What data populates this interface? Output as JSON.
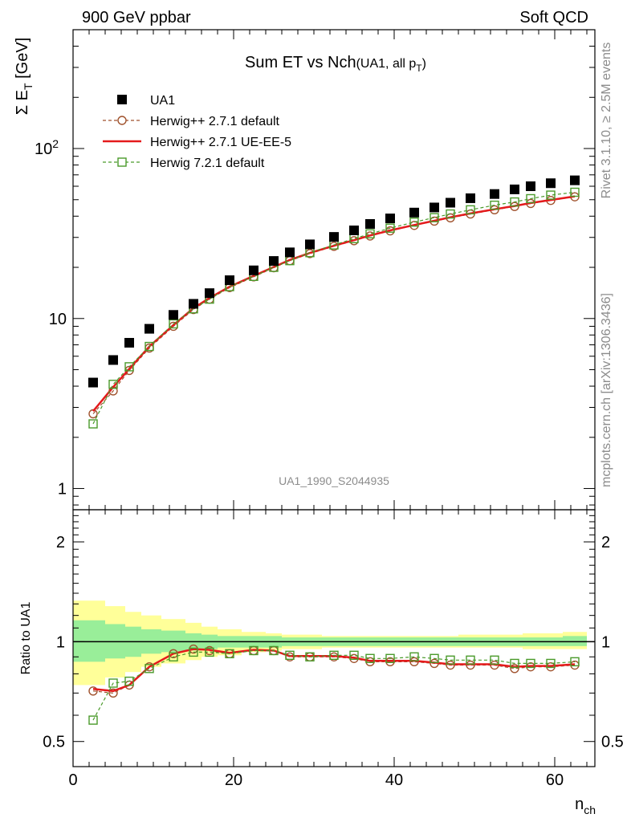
{
  "header": {
    "left": "900 GeV ppbar",
    "right": "Soft QCD"
  },
  "side_texts": {
    "rivet": "Rivet 3.1.10, ≥ 2.5M events",
    "mcplots": "mcplots.cern.ch [arXiv:1306.3436]"
  },
  "watermark": "UA1_1990_S2044935",
  "chart_data": [
    {
      "type": "scatter",
      "panel": "main",
      "title": {
        "main": "Sum ET vs Nch",
        "sub": "(UA1, all p",
        "sub_index": "T",
        "sub_close": ")"
      },
      "ylabel": {
        "sym": "Σ E",
        "sub": "T",
        "unit": " [GeV]"
      },
      "xlabel": "",
      "yscale": "log",
      "ylim": [
        0.75,
        500
      ],
      "xlim": [
        0,
        65
      ],
      "yticks": [
        {
          "v": 1,
          "label": "1"
        },
        {
          "v": 10,
          "label": "10"
        },
        {
          "v": 100,
          "label": "10",
          "sup": "2"
        }
      ],
      "legend": {
        "position": "top-left"
      },
      "x": [
        2.5,
        5,
        7,
        9.5,
        12.5,
        15,
        17,
        19.5,
        22.5,
        25,
        27,
        29.5,
        32.5,
        35,
        37,
        39.5,
        42.5,
        45,
        47,
        49.5,
        52.5,
        55,
        57,
        59.5,
        62.5
      ],
      "series": [
        {
          "name": "UA1",
          "style": "data",
          "color": "#000000",
          "values": [
            4.2,
            5.7,
            7.2,
            8.7,
            10.5,
            12.2,
            14.1,
            16.8,
            19.2,
            21.8,
            24.5,
            27.3,
            30.2,
            33.0,
            36.0,
            38.8,
            42.0,
            45.0,
            48.0,
            51.0,
            54.0,
            57.5,
            60.0,
            62.5,
            65.0
          ]
        },
        {
          "name": "Herwig++ 2.7.1 default",
          "style": "circle-dashed",
          "color": "#a0522d",
          "values": [
            2.75,
            3.75,
            4.95,
            6.7,
            9.0,
            11.3,
            13.0,
            15.2,
            17.6,
            19.9,
            21.9,
            24.1,
            26.6,
            28.7,
            30.6,
            32.8,
            35.3,
            37.4,
            39.1,
            41.2,
            43.6,
            45.6,
            47.5,
            49.5,
            52.0
          ]
        },
        {
          "name": "Herwig++ 2.7.1 UE-EE-5",
          "style": "line",
          "color": "#e41a1c",
          "values": [
            2.85,
            3.95,
            5.05,
            6.85,
            9.15,
            11.5,
            13.2,
            15.4,
            17.8,
            20.1,
            22.1,
            24.3,
            26.8,
            28.9,
            30.8,
            33.0,
            35.5,
            37.6,
            39.4,
            41.5,
            43.9,
            45.9,
            47.8,
            49.8,
            52.3
          ]
        },
        {
          "name": "Herwig 7.2.1 default",
          "style": "square-dashed",
          "color": "#4a9a2a",
          "values": [
            2.4,
            4.1,
            5.2,
            6.85,
            9.3,
            11.4,
            13.0,
            15.4,
            17.7,
            20.0,
            21.9,
            24.4,
            27.1,
            29.5,
            31.5,
            34.0,
            36.9,
            39.2,
            41.2,
            43.6,
            46.4,
            48.5,
            50.7,
            53.2,
            55.3
          ]
        }
      ]
    },
    {
      "type": "scatter",
      "panel": "ratio",
      "ylabel": "Ratio to UA1",
      "xlabel": {
        "main": "n",
        "sub": "ch"
      },
      "ylim": [
        0.42,
        2.5
      ],
      "yscale": "log",
      "xlim": [
        0,
        65
      ],
      "xticks": [
        0,
        20,
        40,
        60
      ],
      "yticks": [
        {
          "v": 0.5,
          "label": "0.5"
        },
        {
          "v": 1,
          "label": "1"
        },
        {
          "v": 2,
          "label": "2"
        }
      ],
      "bands": {
        "edges": [
          0,
          4,
          6.5,
          8.5,
          11,
          14,
          16,
          18,
          21,
          24,
          26,
          28,
          31,
          34,
          36,
          38,
          41,
          44,
          46,
          48,
          51,
          54,
          56,
          58,
          61,
          64
        ],
        "yellow_lo": [
          0.74,
          0.78,
          0.81,
          0.84,
          0.86,
          0.88,
          0.9,
          0.91,
          0.93,
          0.94,
          0.95,
          0.95,
          0.96,
          0.96,
          0.96,
          0.96,
          0.96,
          0.96,
          0.96,
          0.96,
          0.96,
          0.96,
          0.95,
          0.95,
          0.95
        ],
        "yellow_hi": [
          1.33,
          1.28,
          1.23,
          1.2,
          1.17,
          1.14,
          1.11,
          1.09,
          1.07,
          1.06,
          1.05,
          1.05,
          1.04,
          1.04,
          1.04,
          1.04,
          1.04,
          1.04,
          1.04,
          1.05,
          1.05,
          1.05,
          1.06,
          1.06,
          1.07
        ],
        "green_lo": [
          0.87,
          0.89,
          0.9,
          0.92,
          0.93,
          0.94,
          0.95,
          0.96,
          0.96,
          0.96,
          0.97,
          0.97,
          0.97,
          0.97,
          0.97,
          0.97,
          0.97,
          0.97,
          0.97,
          0.97,
          0.97,
          0.97,
          0.97,
          0.97,
          0.97
        ],
        "green_hi": [
          1.16,
          1.13,
          1.11,
          1.09,
          1.08,
          1.06,
          1.05,
          1.04,
          1.04,
          1.04,
          1.03,
          1.03,
          1.03,
          1.03,
          1.03,
          1.03,
          1.03,
          1.03,
          1.03,
          1.03,
          1.03,
          1.03,
          1.03,
          1.03,
          1.04
        ],
        "yellow_color": "#ffff99",
        "green_color": "#99ee99"
      },
      "x": [
        2.5,
        5,
        7,
        9.5,
        12.5,
        15,
        17,
        19.5,
        22.5,
        25,
        27,
        29.5,
        32.5,
        35,
        37,
        39.5,
        42.5,
        45,
        47,
        49.5,
        52.5,
        55,
        57,
        59.5,
        62.5
      ],
      "series": [
        {
          "name": "Herwig++ 2.7.1 default",
          "style": "circle-dashed",
          "color": "#a0522d",
          "values": [
            0.71,
            0.7,
            0.74,
            0.84,
            0.92,
            0.95,
            0.94,
            0.92,
            0.94,
            0.94,
            0.9,
            0.9,
            0.9,
            0.89,
            0.87,
            0.87,
            0.87,
            0.86,
            0.85,
            0.85,
            0.85,
            0.83,
            0.84,
            0.84,
            0.85
          ]
        },
        {
          "name": "Herwig++ 2.7.1 UE-EE-5",
          "style": "line",
          "color": "#e41a1c",
          "values": [
            0.72,
            0.71,
            0.74,
            0.84,
            0.92,
            0.95,
            0.945,
            0.925,
            0.945,
            0.94,
            0.905,
            0.905,
            0.905,
            0.895,
            0.875,
            0.875,
            0.875,
            0.865,
            0.855,
            0.855,
            0.855,
            0.84,
            0.845,
            0.845,
            0.855
          ]
        },
        {
          "name": "Herwig 7.2.1 default",
          "style": "square-dashed",
          "color": "#4a9a2a",
          "values": [
            0.58,
            0.75,
            0.76,
            0.83,
            0.9,
            0.93,
            0.93,
            0.92,
            0.94,
            0.94,
            0.91,
            0.9,
            0.91,
            0.91,
            0.89,
            0.89,
            0.9,
            0.89,
            0.88,
            0.88,
            0.88,
            0.86,
            0.86,
            0.86,
            0.87
          ]
        }
      ]
    }
  ]
}
